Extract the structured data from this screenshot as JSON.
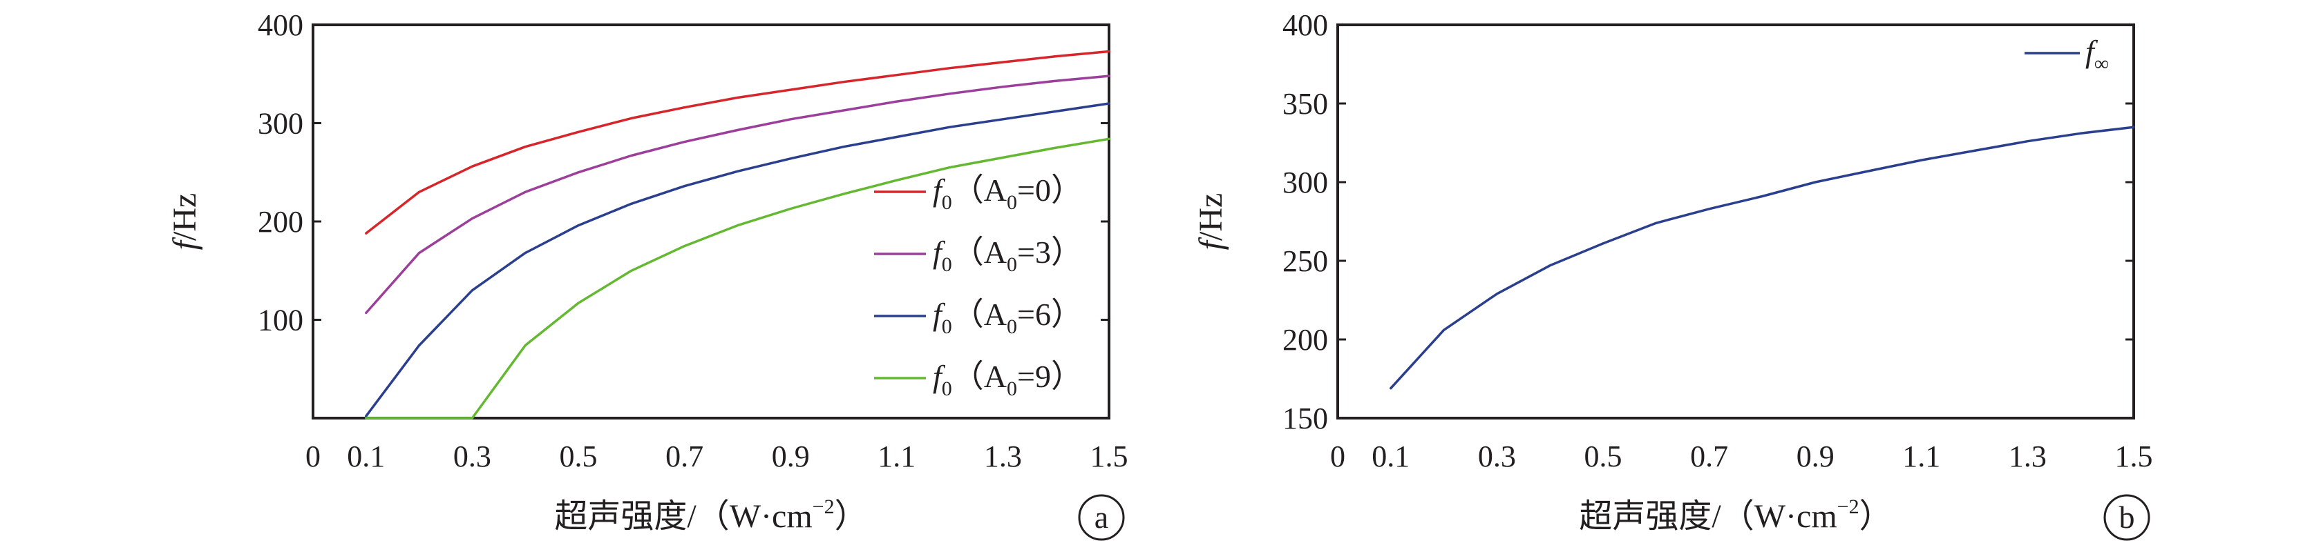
{
  "chart_data": [
    {
      "type": "line",
      "panel_label": "a",
      "xlabel": "超声强度/（W·cm",
      "xlabel_sup": "−2",
      "xlabel_close": "）",
      "ylabel": "f",
      "ylabel_unit": "/Hz",
      "xlim": [
        0,
        1.5
      ],
      "ylim": [
        0,
        400
      ],
      "x_ticks": [
        "0",
        "0.1",
        "0.3",
        "0.5",
        "0.7",
        "0.9",
        "1.1",
        "1.3",
        "1.5"
      ],
      "x_tick_values": [
        0,
        0.1,
        0.3,
        0.5,
        0.7,
        0.9,
        1.1,
        1.3,
        1.5
      ],
      "y_ticks": [
        "100",
        "200",
        "300",
        "400"
      ],
      "y_tick_values": [
        100,
        200,
        300,
        400
      ],
      "legend_position": "right",
      "x": [
        0.1,
        0.2,
        0.3,
        0.4,
        0.5,
        0.6,
        0.7,
        0.8,
        0.9,
        1.0,
        1.1,
        1.2,
        1.3,
        1.4,
        1.5
      ],
      "series": [
        {
          "name": "f",
          "sub": "0",
          "cond": "（A",
          "cond_sub": "0",
          "cond_val": "=0）",
          "color": "#d7262b",
          "values": [
            188,
            230,
            256,
            276,
            291,
            305,
            316,
            326,
            334,
            342,
            349,
            356,
            362,
            368,
            373
          ]
        },
        {
          "name": "f",
          "sub": "0",
          "cond": "（A",
          "cond_sub": "0",
          "cond_val": "=3）",
          "color": "#9b3f9b",
          "values": [
            107,
            168,
            203,
            230,
            250,
            267,
            281,
            293,
            304,
            313,
            322,
            330,
            337,
            343,
            348
          ]
        },
        {
          "name": "f",
          "sub": "0",
          "cond": "（A",
          "cond_sub": "0",
          "cond_val": "=6）",
          "color": "#2b3f8f",
          "values": [
            2,
            74,
            130,
            168,
            196,
            218,
            236,
            251,
            264,
            276,
            286,
            296,
            304,
            312,
            320
          ]
        },
        {
          "name": "f",
          "sub": "0",
          "cond": "（A",
          "cond_sub": "0",
          "cond_val": "=9）",
          "color": "#64b832",
          "values": [
            0,
            0,
            0,
            74,
            117,
            150,
            175,
            196,
            213,
            228,
            242,
            255,
            265,
            275,
            284
          ]
        }
      ]
    },
    {
      "type": "line",
      "panel_label": "b",
      "xlabel": "超声强度/（W·cm",
      "xlabel_sup": "−2",
      "xlabel_close": "）",
      "ylabel": "f",
      "ylabel_unit": "/Hz",
      "xlim": [
        0,
        1.5
      ],
      "ylim": [
        150,
        400
      ],
      "x_ticks": [
        "0",
        "0.1",
        "0.3",
        "0.5",
        "0.7",
        "0.9",
        "1.1",
        "1.3",
        "1.5"
      ],
      "x_tick_values": [
        0,
        0.1,
        0.3,
        0.5,
        0.7,
        0.9,
        1.1,
        1.3,
        1.5
      ],
      "y_ticks": [
        "150",
        "200",
        "250",
        "300",
        "350",
        "400"
      ],
      "y_tick_values": [
        150,
        200,
        250,
        300,
        350,
        400
      ],
      "legend_position": "top-right",
      "x": [
        0.1,
        0.2,
        0.3,
        0.4,
        0.5,
        0.6,
        0.7,
        0.8,
        0.9,
        1.0,
        1.1,
        1.2,
        1.3,
        1.4,
        1.5
      ],
      "series": [
        {
          "name": "f",
          "sub": "∞",
          "color": "#2b3f8f",
          "values": [
            169,
            206,
            229,
            247,
            261,
            274,
            283,
            291,
            300,
            307,
            314,
            320,
            326,
            331,
            335
          ]
        }
      ]
    }
  ]
}
